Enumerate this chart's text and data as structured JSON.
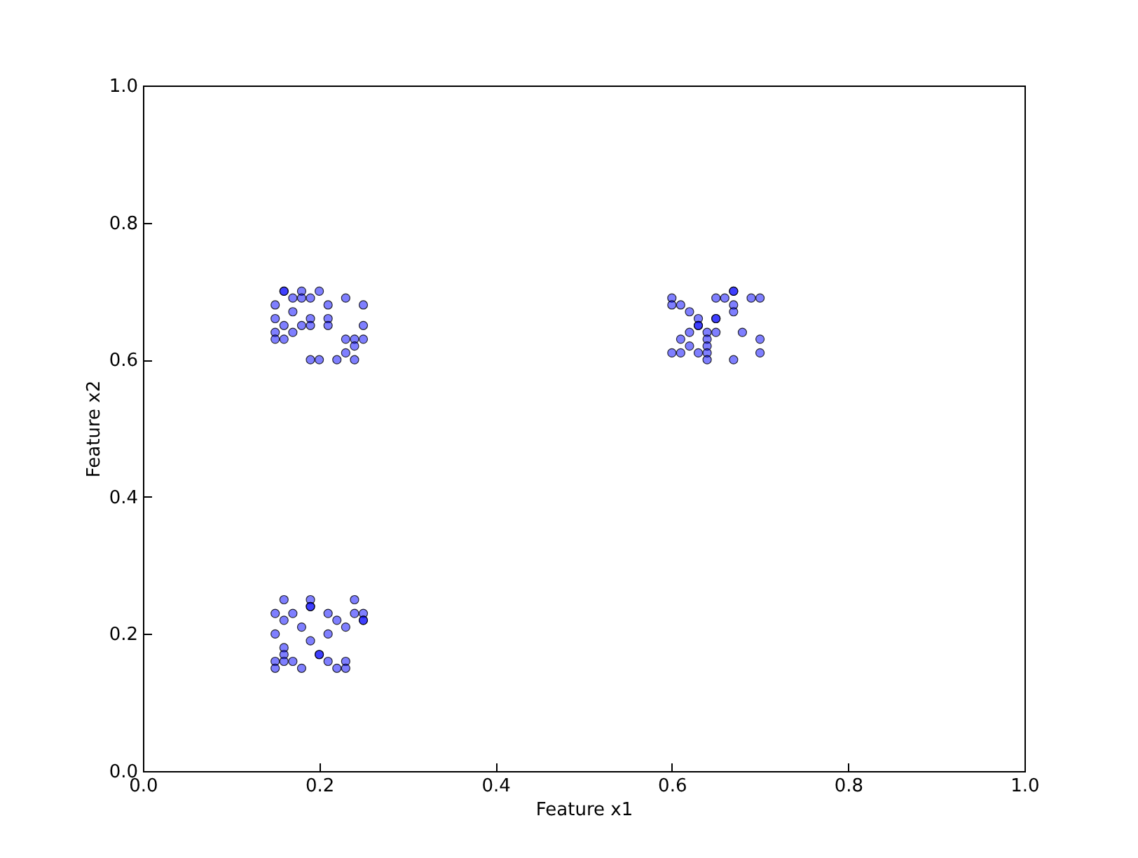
{
  "chart_data": {
    "type": "scatter",
    "xlabel": "Feature x1",
    "ylabel": "Feature x2",
    "x": [
      0.16,
      0.16,
      0.18,
      0.2,
      0.17,
      0.18,
      0.19,
      0.23,
      0.15,
      0.21,
      0.25,
      0.17,
      0.15,
      0.19,
      0.21,
      0.16,
      0.18,
      0.19,
      0.21,
      0.25,
      0.15,
      0.17,
      0.15,
      0.16,
      0.23,
      0.24,
      0.25,
      0.24,
      0.23,
      0.19,
      0.2,
      0.22,
      0.24,
      0.6,
      0.6,
      0.61,
      0.62,
      0.67,
      0.67,
      0.65,
      0.66,
      0.69,
      0.7,
      0.67,
      0.67,
      0.63,
      0.63,
      0.63,
      0.65,
      0.65,
      0.62,
      0.64,
      0.65,
      0.68,
      0.61,
      0.64,
      0.7,
      0.62,
      0.64,
      0.6,
      0.61,
      0.63,
      0.64,
      0.7,
      0.64,
      0.67,
      0.16,
      0.19,
      0.24,
      0.19,
      0.19,
      0.15,
      0.17,
      0.21,
      0.24,
      0.25,
      0.16,
      0.22,
      0.25,
      0.25,
      0.18,
      0.23,
      0.15,
      0.21,
      0.19,
      0.16,
      0.16,
      0.2,
      0.2,
      0.15,
      0.16,
      0.17,
      0.21,
      0.23,
      0.15,
      0.18,
      0.22,
      0.23
    ],
    "series": [
      {
        "color": "#0000ff",
        "values": [
          0.7,
          0.7,
          0.7,
          0.7,
          0.69,
          0.69,
          0.69,
          0.69,
          0.68,
          0.68,
          0.68,
          0.67,
          0.66,
          0.66,
          0.66,
          0.65,
          0.65,
          0.65,
          0.65,
          0.65,
          0.64,
          0.64,
          0.63,
          0.63,
          0.63,
          0.63,
          0.63,
          0.62,
          0.61,
          0.6,
          0.6,
          0.6,
          0.6,
          0.69,
          0.68,
          0.68,
          0.67,
          0.7,
          0.7,
          0.69,
          0.69,
          0.69,
          0.69,
          0.68,
          0.67,
          0.66,
          0.65,
          0.65,
          0.66,
          0.66,
          0.64,
          0.64,
          0.64,
          0.64,
          0.63,
          0.63,
          0.63,
          0.62,
          0.62,
          0.61,
          0.61,
          0.61,
          0.61,
          0.61,
          0.6,
          0.6,
          0.25,
          0.25,
          0.25,
          0.24,
          0.24,
          0.23,
          0.23,
          0.23,
          0.23,
          0.23,
          0.22,
          0.22,
          0.22,
          0.22,
          0.21,
          0.21,
          0.2,
          0.2,
          0.19,
          0.18,
          0.17,
          0.17,
          0.17,
          0.16,
          0.16,
          0.16,
          0.16,
          0.16,
          0.15,
          0.15,
          0.15,
          0.15
        ]
      }
    ],
    "xlim": [
      0,
      1
    ],
    "ylim": [
      0,
      1
    ],
    "xticks": [
      {
        "value": 0,
        "label": "0.0"
      },
      {
        "value": 0.2,
        "label": "0.2"
      },
      {
        "value": 0.4,
        "label": "0.4"
      },
      {
        "value": 0.6,
        "label": "0.6"
      },
      {
        "value": 0.8,
        "label": "0.8"
      },
      {
        "value": 1,
        "label": "1.0"
      }
    ],
    "yticks": [
      {
        "value": 0,
        "label": "0.0"
      },
      {
        "value": 0.2,
        "label": "0.2"
      },
      {
        "value": 0.4,
        "label": "0.4"
      },
      {
        "value": 0.6,
        "label": "0.6"
      },
      {
        "value": 0.8,
        "label": "0.8"
      },
      {
        "value": 1,
        "label": "1.0"
      }
    ],
    "marker": "circle"
  }
}
